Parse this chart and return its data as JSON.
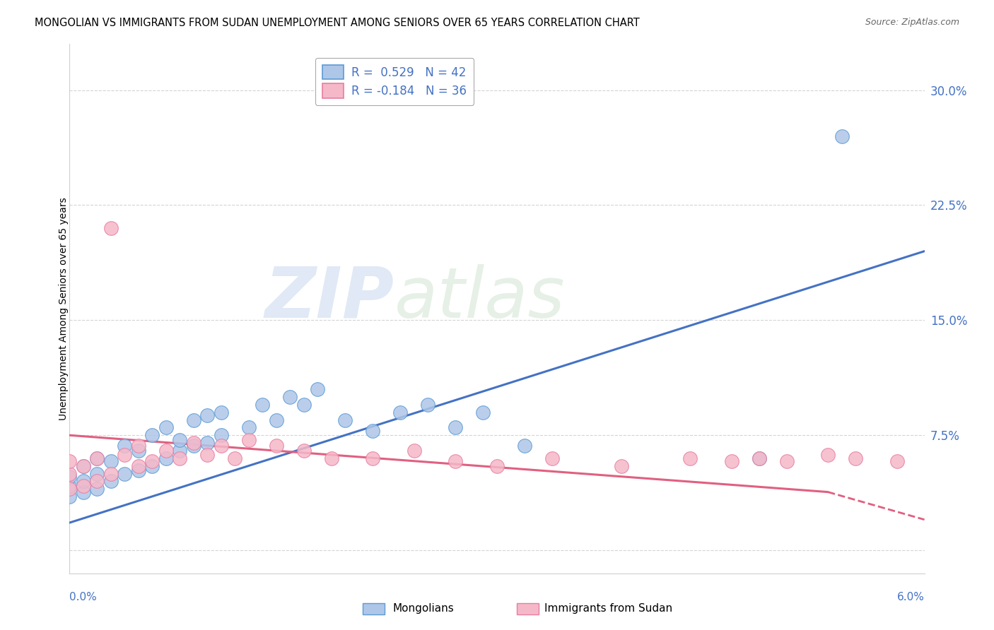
{
  "title": "MONGOLIAN VS IMMIGRANTS FROM SUDAN UNEMPLOYMENT AMONG SENIORS OVER 65 YEARS CORRELATION CHART",
  "source": "Source: ZipAtlas.com",
  "ylabel": "Unemployment Among Seniors over 65 years",
  "ytick_vals": [
    0.0,
    0.075,
    0.15,
    0.225,
    0.3
  ],
  "ytick_labels": [
    "",
    "7.5%",
    "15.0%",
    "22.5%",
    "30.0%"
  ],
  "xlim": [
    0.0,
    0.062
  ],
  "ylim": [
    -0.015,
    0.33
  ],
  "watermark_zip": "ZIP",
  "watermark_atlas": "atlas",
  "legend_r1": "R =  0.529   N = 42",
  "legend_r2": "R = -0.184   N = 36",
  "blue_fill": "#aec6e8",
  "pink_fill": "#f5b8c8",
  "blue_edge": "#5b9bd5",
  "pink_edge": "#e87ea1",
  "blue_line": "#4472c4",
  "pink_line": "#e06080",
  "mongolian_x": [
    0.0,
    0.0,
    0.0,
    0.001,
    0.001,
    0.001,
    0.002,
    0.002,
    0.002,
    0.003,
    0.003,
    0.004,
    0.004,
    0.005,
    0.005,
    0.006,
    0.006,
    0.007,
    0.007,
    0.008,
    0.008,
    0.009,
    0.009,
    0.01,
    0.01,
    0.011,
    0.011,
    0.013,
    0.014,
    0.015,
    0.016,
    0.017,
    0.018,
    0.02,
    0.022,
    0.024,
    0.026,
    0.028,
    0.03,
    0.033,
    0.05,
    0.056
  ],
  "mongolian_y": [
    0.035,
    0.042,
    0.048,
    0.038,
    0.045,
    0.055,
    0.04,
    0.05,
    0.06,
    0.045,
    0.058,
    0.05,
    0.068,
    0.052,
    0.065,
    0.055,
    0.075,
    0.06,
    0.08,
    0.065,
    0.072,
    0.068,
    0.085,
    0.07,
    0.088,
    0.075,
    0.09,
    0.08,
    0.095,
    0.085,
    0.1,
    0.095,
    0.105,
    0.085,
    0.078,
    0.09,
    0.095,
    0.08,
    0.09,
    0.068,
    0.06,
    0.27
  ],
  "sudan_x": [
    0.0,
    0.0,
    0.0,
    0.001,
    0.001,
    0.002,
    0.002,
    0.003,
    0.003,
    0.004,
    0.005,
    0.005,
    0.006,
    0.007,
    0.008,
    0.009,
    0.01,
    0.011,
    0.012,
    0.013,
    0.015,
    0.017,
    0.019,
    0.022,
    0.025,
    0.028,
    0.031,
    0.035,
    0.04,
    0.045,
    0.048,
    0.05,
    0.052,
    0.055,
    0.057,
    0.06
  ],
  "sudan_y": [
    0.04,
    0.05,
    0.058,
    0.042,
    0.055,
    0.045,
    0.06,
    0.21,
    0.05,
    0.062,
    0.055,
    0.068,
    0.058,
    0.065,
    0.06,
    0.07,
    0.062,
    0.068,
    0.06,
    0.072,
    0.068,
    0.065,
    0.06,
    0.06,
    0.065,
    0.058,
    0.055,
    0.06,
    0.055,
    0.06,
    0.058,
    0.06,
    0.058,
    0.062,
    0.06,
    0.058
  ],
  "blue_trend": [
    0.0,
    0.062,
    0.018,
    0.195
  ],
  "pink_trend_solid": [
    0.0,
    0.055,
    0.075,
    0.038
  ],
  "pink_trend_dash": [
    0.055,
    0.062,
    0.038,
    0.02
  ],
  "background": "#ffffff",
  "grid_color": "#d0d0d0"
}
